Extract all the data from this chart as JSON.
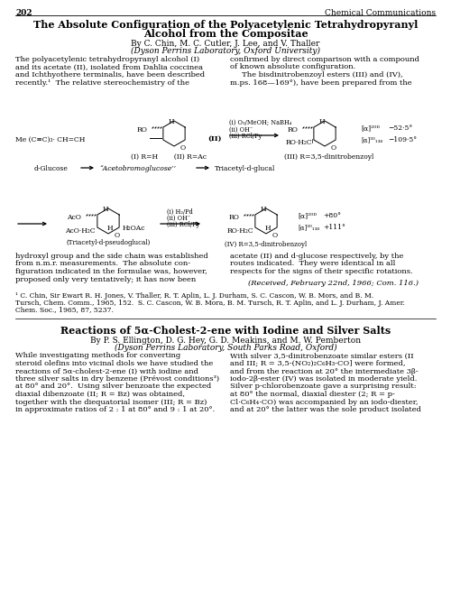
{
  "page_number": "202",
  "journal_name": "Chemical Communications",
  "title_line1": "The Absolute Configuration of the Polyacetylenic Tetrahydropyranyl",
  "title_line2": "Alcohol from the Compositae",
  "authors": "By C. Chin, M. C. Cutler, J. Lee, and V. Thaller",
  "affiliation": "(Dyson Perrins Laboratory, Oxford University)",
  "body_left_1_lines": [
    "The polyacetylenic tetrahydropyranyl alcohol (I)",
    "and its acetate (II), isolated from Dahlia coccinea",
    "and Ichthyothere terminalis, have been described",
    "recently.¹  The relative stereochemistry of the"
  ],
  "body_right_1_lines": [
    "confirmed by direct comparison with a compound",
    "of known absolute configuration.",
    "     The bisdinitrobenzoyl esters (III) and (IV),",
    "m.ps. 168—169°), have been prepared from the"
  ],
  "body_left_2_lines": [
    "hydroxyl group and the side chain was established",
    "from n.m.r. measurements.  The absolute con-",
    "figuration indicated in the formulae was, however,",
    "proposed only very tentatively; it has now been"
  ],
  "body_right_2_lines": [
    "acetate (II) and d-glucose respectively, by the",
    "routes indicated.  They were identical in all",
    "respects for the signs of their specific rotations."
  ],
  "received": "(Received, February 22nd, 1966; Com. 116.)",
  "footnote_lines": [
    "¹ C. Chin, Sir Ewart R. H. Jones, V. Thaller, R. T. Aplin, L. J. Durham, S. C. Cascon, W. B. Mors, and B. M.",
    "Tursch, Chem. Comm., 1965, 152.  S. C. Cascon, W. B. Mora, B. M. Tursch, R. T. Aplin, and L. J. Durham, J. Amer.",
    "Chem. Soc., 1965, 87, 5237."
  ],
  "title2": "Reactions of 5α-Cholest-2-ene with Iodine and Silver Salts",
  "authors2": "By P. S. Ellington, D. G. Hey, G. D. Meakins, and M. W. Pemberton",
  "affiliation2": "(Dyson Perrins Laboratory, South Parks Road, Oxford)",
  "body_left_3_lines": [
    "While investigating methods for converting",
    "steroid olefins into vicinal diols we have studied the",
    "reactions of 5α-cholest-2-ene (I) with iodine and",
    "three silver salts in dry benzene (Prévost conditions³)",
    "at 80° and 20°.  Using silver benzoate the expected",
    "diaxial dibenzoate (II; R = Bz) was obtained,",
    "together with the diequatorial isomer (III; R = Bz)",
    "in approximate ratios of 2 : 1 at 80° and 9 : 1 at 20°."
  ],
  "body_right_3_lines": [
    "With silver 3,5-dinitrobenzoate similar esters (II",
    "and III; R = 3,5-(NO₂)₂C₆H₃-CO] were formed,",
    "and from the reaction at 20° the intermediate 3β-",
    "iodo-2β-ester (IV) was isolated in moderate yield.",
    "Silver p-chlorobenzoate gave a surprising result:",
    "at 80° the normal, diaxial diester (2; R = p-",
    "Cl·C₆H₄·CO) was accompanied by an iodo-diester,",
    "and at 20° the latter was the sole product isolated"
  ],
  "bg_color": "#ffffff"
}
